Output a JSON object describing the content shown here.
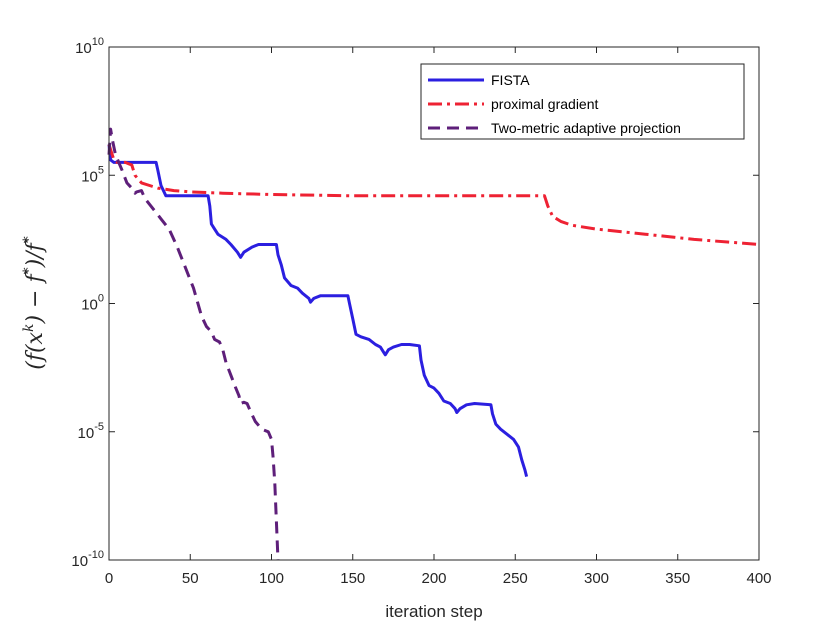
{
  "chart_data": {
    "type": "line",
    "title": "",
    "xlabel": "iteration step",
    "ylabel": "(f(x^k) − f*) / f*",
    "ylabel_parts": {
      "open": "(f(x",
      "k": "k",
      "mid": ") − f",
      "star1": "*",
      "close": ")/f",
      "star2": "*"
    },
    "xlim": [
      0,
      400
    ],
    "ylim_exp": [
      -10,
      10
    ],
    "yscale": "log",
    "grid": false,
    "legend_position": "top-right",
    "x_ticks": [
      "0",
      "50",
      "100",
      "150",
      "200",
      "250",
      "300",
      "350",
      "400"
    ],
    "y_ticks": [
      {
        "exp": -10,
        "base": "10",
        "power": "-10"
      },
      {
        "exp": -5,
        "base": "10",
        "power": "-5"
      },
      {
        "exp": 0,
        "base": "10",
        "power": "0"
      },
      {
        "exp": 5,
        "base": "10",
        "power": "5"
      },
      {
        "exp": 10,
        "base": "10",
        "power": "10"
      }
    ],
    "series": [
      {
        "name": "FISTA",
        "color": "#2b1fe0",
        "dash": "solid",
        "points_log10": [
          [
            0,
            6.2
          ],
          [
            1,
            5.6
          ],
          [
            3,
            5.5
          ],
          [
            5,
            5.5
          ],
          [
            29,
            5.5
          ],
          [
            30,
            5.2
          ],
          [
            32,
            4.6
          ],
          [
            35,
            4.2
          ],
          [
            45,
            4.2
          ],
          [
            61,
            4.2
          ],
          [
            62,
            3.8
          ],
          [
            63,
            3.1
          ],
          [
            65,
            2.9
          ],
          [
            67,
            2.7
          ],
          [
            72,
            2.5
          ],
          [
            75,
            2.3
          ],
          [
            79,
            2.0
          ],
          [
            81,
            1.8
          ],
          [
            83,
            2.0
          ],
          [
            88,
            2.2
          ],
          [
            92,
            2.3
          ],
          [
            100,
            2.3
          ],
          [
            103,
            2.3
          ],
          [
            104,
            1.9
          ],
          [
            106,
            1.5
          ],
          [
            108,
            1.0
          ],
          [
            112,
            0.7
          ],
          [
            116,
            0.6
          ],
          [
            119,
            0.4
          ],
          [
            123,
            0.2
          ],
          [
            124,
            0.05
          ],
          [
            126,
            0.2
          ],
          [
            130,
            0.3
          ],
          [
            135,
            0.3
          ],
          [
            142,
            0.3
          ],
          [
            147,
            0.3
          ],
          [
            148,
            0.0
          ],
          [
            150,
            -0.6
          ],
          [
            152,
            -1.2
          ],
          [
            155,
            -1.3
          ],
          [
            160,
            -1.4
          ],
          [
            164,
            -1.6
          ],
          [
            167,
            -1.7
          ],
          [
            169,
            -1.9
          ],
          [
            170,
            -2.0
          ],
          [
            172,
            -1.8
          ],
          [
            175,
            -1.7
          ],
          [
            180,
            -1.6
          ],
          [
            185,
            -1.6
          ],
          [
            191,
            -1.65
          ],
          [
            192,
            -2.2
          ],
          [
            194,
            -2.8
          ],
          [
            197,
            -3.2
          ],
          [
            200,
            -3.3
          ],
          [
            203,
            -3.5
          ],
          [
            206,
            -3.8
          ],
          [
            210,
            -3.9
          ],
          [
            213,
            -4.1
          ],
          [
            214,
            -4.25
          ],
          [
            216,
            -4.1
          ],
          [
            220,
            -3.95
          ],
          [
            225,
            -3.9
          ],
          [
            235,
            -3.95
          ],
          [
            236,
            -4.3
          ],
          [
            238,
            -4.7
          ],
          [
            241,
            -4.9
          ],
          [
            245,
            -5.1
          ],
          [
            249,
            -5.3
          ],
          [
            252,
            -5.6
          ],
          [
            254,
            -6.1
          ],
          [
            256,
            -6.5
          ],
          [
            257,
            -6.75
          ]
        ]
      },
      {
        "name": "proximal gradient",
        "color": "#ee2233",
        "dash": "dashdot",
        "points_log10": [
          [
            0,
            6.2
          ],
          [
            1,
            6.0
          ],
          [
            3,
            5.6
          ],
          [
            5,
            5.5
          ],
          [
            10,
            5.5
          ],
          [
            14,
            5.4
          ],
          [
            16,
            5.0
          ],
          [
            20,
            4.7
          ],
          [
            25,
            4.6
          ],
          [
            30,
            4.5
          ],
          [
            40,
            4.4
          ],
          [
            50,
            4.35
          ],
          [
            70,
            4.3
          ],
          [
            100,
            4.25
          ],
          [
            150,
            4.2
          ],
          [
            200,
            4.2
          ],
          [
            250,
            4.2
          ],
          [
            268,
            4.2
          ],
          [
            270,
            3.8
          ],
          [
            273,
            3.4
          ],
          [
            278,
            3.2
          ],
          [
            285,
            3.05
          ],
          [
            300,
            2.9
          ],
          [
            330,
            2.7
          ],
          [
            360,
            2.5
          ],
          [
            400,
            2.3
          ]
        ]
      },
      {
        "name": "Two-metric adaptive projection",
        "color": "#5e1f7a",
        "dash": "dash",
        "points_log10": [
          [
            0,
            5.8
          ],
          [
            1,
            6.8
          ],
          [
            2,
            6.4
          ],
          [
            4,
            5.8
          ],
          [
            8,
            5.2
          ],
          [
            11,
            4.7
          ],
          [
            14,
            4.5
          ],
          [
            16,
            4.3
          ],
          [
            17,
            4.35
          ],
          [
            20,
            4.4
          ],
          [
            22,
            4.1
          ],
          [
            27,
            3.7
          ],
          [
            32,
            3.3
          ],
          [
            37,
            2.9
          ],
          [
            42,
            2.2
          ],
          [
            47,
            1.4
          ],
          [
            52,
            0.6
          ],
          [
            57,
            -0.5
          ],
          [
            60,
            -0.9
          ],
          [
            63,
            -1.1
          ],
          [
            65,
            -1.4
          ],
          [
            68,
            -1.5
          ],
          [
            70,
            -1.8
          ],
          [
            72,
            -2.3
          ],
          [
            75,
            -2.8
          ],
          [
            78,
            -3.3
          ],
          [
            80,
            -3.6
          ],
          [
            81,
            -3.9
          ],
          [
            83,
            -3.85
          ],
          [
            85,
            -3.9
          ],
          [
            87,
            -4.2
          ],
          [
            90,
            -4.6
          ],
          [
            94,
            -4.9
          ],
          [
            98,
            -5.0
          ],
          [
            100,
            -5.3
          ],
          [
            101,
            -6.0
          ],
          [
            102,
            -7.0
          ],
          [
            103,
            -8.5
          ],
          [
            104,
            -10
          ]
        ]
      }
    ]
  }
}
